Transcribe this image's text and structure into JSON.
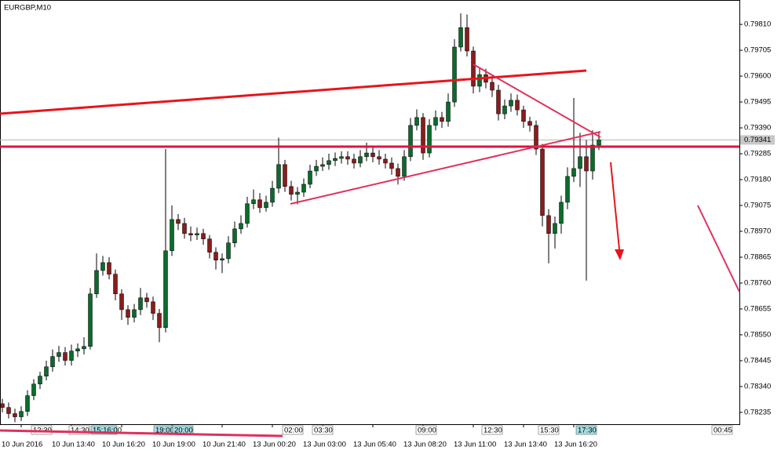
{
  "chart_data": {
    "type": "candlestick",
    "title": "EURGBP,M10",
    "categories": [
      null,
      null,
      null,
      "10 Jun 2016",
      null,
      null,
      null,
      null,
      null,
      null,
      null,
      "10 Jun 13:40",
      null,
      null,
      null,
      null,
      null,
      null,
      null,
      "10 Jun 16:20",
      null,
      null,
      null,
      null,
      null,
      null,
      null,
      "10 Jun 19:00",
      null,
      null,
      null,
      null,
      null,
      null,
      null,
      "10 Jun 21:40",
      null,
      null,
      null,
      null,
      null,
      null,
      null,
      "13 Jun 00:20",
      null,
      null,
      null,
      null,
      null,
      null,
      null,
      "13 Jun 03:00",
      null,
      null,
      null,
      null,
      null,
      null,
      null,
      "13 Jun 05:40",
      null,
      null,
      null,
      null,
      null,
      null,
      null,
      "13 Jun 08:20",
      null,
      null,
      null,
      null,
      null,
      null,
      null,
      "13 Jun 11:00",
      null,
      null,
      null,
      null,
      null,
      null,
      null,
      "13 Jun 13:40",
      null,
      null,
      null,
      null,
      null,
      null,
      null,
      "13 Jun 16:20",
      null,
      null,
      null,
      null
    ],
    "open": [
      0.7827,
      0.78255,
      0.7823,
      0.78217,
      0.78239,
      0.78303,
      0.7835,
      0.78382,
      0.7842,
      0.78462,
      0.78478,
      0.78446,
      0.78484,
      0.78493,
      0.78503,
      0.78716,
      0.78811,
      0.78843,
      0.78796,
      0.78716,
      0.78652,
      0.78621,
      0.78652,
      0.787,
      0.78684,
      0.78637,
      0.78579,
      0.78891,
      0.79018,
      0.79002,
      0.78961,
      0.78955,
      0.78961,
      0.78939,
      0.78885,
      0.78853,
      0.78859,
      0.78923,
      0.7898,
      0.79002,
      0.79082,
      0.79098,
      0.79066,
      0.79088,
      0.79145,
      0.79241,
      0.79152,
      0.7912,
      0.79129,
      0.79161,
      0.79215,
      0.79234,
      0.79241,
      0.79257,
      0.79266,
      0.79273,
      0.79263,
      0.79247,
      0.79273,
      0.79288,
      0.79273,
      0.79263,
      0.79247,
      0.79225,
      0.79193,
      0.79273,
      0.794,
      0.79432,
      0.79288,
      0.794,
      0.79432,
      0.79416,
      0.79495,
      0.79718,
      0.79797,
      0.79702,
      0.79559,
      0.79606,
      0.79575,
      0.79543,
      0.79447,
      0.79479,
      0.79502,
      0.79463,
      0.79416,
      0.794,
      0.79304,
      0.79034,
      0.78961,
      0.79002,
      0.79088,
      0.79193,
      0.79225,
      0.79273,
      0.79215,
      0.7932
    ],
    "high": [
      0.7829,
      0.78275,
      0.7825,
      0.7826,
      0.78325,
      0.7837,
      0.784,
      0.78445,
      0.7849,
      0.78505,
      0.785,
      0.7851,
      0.78515,
      0.7854,
      0.7874,
      0.7888,
      0.7887,
      0.78865,
      0.78815,
      0.78735,
      0.7867,
      0.78675,
      0.7874,
      0.7872,
      0.78705,
      0.78655,
      0.79304,
      0.79075,
      0.7904,
      0.79025,
      0.7899,
      0.78985,
      0.7898,
      0.78955,
      0.78905,
      0.7888,
      0.7895,
      0.7901,
      0.79035,
      0.7911,
      0.7914,
      0.79125,
      0.79115,
      0.79175,
      0.7935,
      0.7926,
      0.79175,
      0.7915,
      0.79185,
      0.7924,
      0.7926,
      0.7927,
      0.79285,
      0.7929,
      0.79295,
      0.79295,
      0.79285,
      0.793,
      0.7933,
      0.7931,
      0.793,
      0.79285,
      0.7927,
      0.79245,
      0.793,
      0.7943,
      0.79465,
      0.7945,
      0.79425,
      0.7946,
      0.79455,
      0.7953,
      0.7975,
      0.79855,
      0.7985,
      0.7972,
      0.79635,
      0.7963,
      0.796,
      0.79565,
      0.79505,
      0.7953,
      0.79525,
      0.7948,
      0.79435,
      0.7942,
      0.79325,
      0.7906,
      0.7903,
      0.79115,
      0.7923,
      0.79511,
      0.7937,
      0.7934,
      0.7938,
      0.7937
    ],
    "low": [
      0.78235,
      0.7821,
      0.78195,
      0.782,
      0.7822,
      0.78285,
      0.7833,
      0.78365,
      0.784,
      0.7844,
      0.78425,
      0.78425,
      0.7846,
      0.7847,
      0.7849,
      0.787,
      0.7879,
      0.78775,
      0.7869,
      0.7861,
      0.7859,
      0.786,
      0.7863,
      0.7866,
      0.7861,
      0.7852,
      0.7856,
      0.7887,
      0.78975,
      0.7894,
      0.7893,
      0.78935,
      0.78915,
      0.7886,
      0.78815,
      0.788,
      0.7884,
      0.78905,
      0.7896,
      0.78985,
      0.7906,
      0.79045,
      0.7905,
      0.7907,
      0.79125,
      0.7913,
      0.79095,
      0.7908,
      0.7911,
      0.79145,
      0.79195,
      0.79215,
      0.7922,
      0.79235,
      0.79245,
      0.7924,
      0.79225,
      0.7923,
      0.79255,
      0.7925,
      0.7924,
      0.79225,
      0.792,
      0.7916,
      0.79175,
      0.79255,
      0.7938,
      0.7926,
      0.7927,
      0.7938,
      0.7939,
      0.79395,
      0.79475,
      0.797,
      0.7968,
      0.7953,
      0.79535,
      0.7955,
      0.79515,
      0.7942,
      0.79425,
      0.79455,
      0.7944,
      0.7939,
      0.79375,
      0.7928,
      0.7899,
      0.7884,
      0.789,
      0.7896,
      0.7906,
      0.7917,
      0.7915,
      0.7877,
      0.7918,
      0.793
    ],
    "close": [
      0.78255,
      0.7823,
      0.78217,
      0.78239,
      0.78303,
      0.7835,
      0.78382,
      0.7842,
      0.78462,
      0.78478,
      0.78446,
      0.78484,
      0.78493,
      0.78503,
      0.78716,
      0.78811,
      0.78843,
      0.78796,
      0.78716,
      0.78652,
      0.78621,
      0.78652,
      0.787,
      0.78684,
      0.78637,
      0.78579,
      0.78891,
      0.79018,
      0.79002,
      0.78961,
      0.78955,
      0.78961,
      0.78939,
      0.78885,
      0.78853,
      0.78859,
      0.78923,
      0.7898,
      0.79002,
      0.79082,
      0.79098,
      0.79066,
      0.79088,
      0.79145,
      0.79241,
      0.79152,
      0.7912,
      0.79129,
      0.79161,
      0.79215,
      0.79234,
      0.79241,
      0.79257,
      0.79266,
      0.79273,
      0.79263,
      0.79247,
      0.79273,
      0.79288,
      0.79273,
      0.79263,
      0.79247,
      0.79225,
      0.79193,
      0.79273,
      0.794,
      0.79432,
      0.79288,
      0.794,
      0.79432,
      0.79416,
      0.79495,
      0.79718,
      0.79797,
      0.79702,
      0.79559,
      0.79606,
      0.79575,
      0.79543,
      0.79447,
      0.79479,
      0.79502,
      0.79463,
      0.79416,
      0.794,
      0.79304,
      0.79034,
      0.78961,
      0.79002,
      0.79088,
      0.79193,
      0.79225,
      0.79273,
      0.79215,
      0.7932,
      0.79341
    ],
    "up_color": "#0b6b2c",
    "down_color": "#8a1c1c",
    "ylim": [
      0.78187,
      0.79909
    ],
    "yticks": [
      {
        "value": 0.7981,
        "label": "0.79810"
      },
      {
        "value": 0.79705,
        "label": "0.79705"
      },
      {
        "value": 0.796,
        "label": "0.79600"
      },
      {
        "value": 0.79495,
        "label": "0.79495"
      },
      {
        "value": 0.7939,
        "label": "0.79390"
      },
      {
        "value": 0.79285,
        "label": "0.79285"
      },
      {
        "value": 0.7918,
        "label": "0.79180"
      },
      {
        "value": 0.79075,
        "label": "0.79075"
      },
      {
        "value": 0.7897,
        "label": "0.78970"
      },
      {
        "value": 0.78865,
        "label": "0.78865"
      },
      {
        "value": 0.7876,
        "label": "0.78760"
      },
      {
        "value": 0.78655,
        "label": "0.78655"
      },
      {
        "value": 0.7855,
        "label": "0.78550"
      },
      {
        "value": 0.78445,
        "label": "0.78445"
      },
      {
        "value": 0.7834,
        "label": "0.78340"
      },
      {
        "value": 0.78235,
        "label": "0.78235"
      }
    ],
    "last_price": {
      "value": 0.79341,
      "label": "0.79341"
    },
    "time_markers": [
      "12:30",
      "14:30",
      "15:16:00",
      "19:00",
      "20:00",
      "02:00",
      "03:30",
      "09:00",
      "12:30",
      "15:30",
      "17:30",
      "00:45"
    ]
  }
}
